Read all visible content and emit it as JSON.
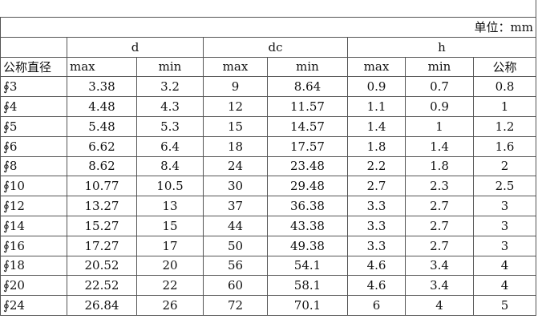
{
  "unit": "单位：mm",
  "groups": [
    "d",
    "dc",
    "h"
  ],
  "subheader": [
    "公称直径",
    "max",
    "min",
    "max",
    "min",
    "max",
    "min",
    "公称"
  ],
  "rows": [
    [
      "∮3",
      "3.38",
      "3.2",
      "9",
      "8.64",
      "0.9",
      "0.7",
      "0.8"
    ],
    [
      "∮4",
      "4.48",
      "4.3",
      "12",
      "11.57",
      "1.1",
      "0.9",
      "1"
    ],
    [
      "∮5",
      "5.48",
      "5.3",
      "15",
      "14.57",
      "1.4",
      "1",
      "1.2"
    ],
    [
      "∮6",
      "6.62",
      "6.4",
      "18",
      "17.57",
      "1.8",
      "1.4",
      "1.6"
    ],
    [
      "∮8",
      "8.62",
      "8.4",
      "24",
      "23.48",
      "2.2",
      "1.8",
      "2"
    ],
    [
      "∮10",
      "10.77",
      "10.5",
      "30",
      "29.48",
      "2.7",
      "2.3",
      "2.5"
    ],
    [
      "∮12",
      "13.27",
      "13",
      "37",
      "36.38",
      "3.3",
      "2.7",
      "3"
    ],
    [
      "∮14",
      "15.27",
      "15",
      "44",
      "43.38",
      "3.3",
      "2.7",
      "3"
    ],
    [
      "∮16",
      "17.27",
      "17",
      "50",
      "49.38",
      "3.3",
      "2.7",
      "3"
    ],
    [
      "∮18",
      "20.52",
      "20",
      "56",
      "54.1",
      "4.6",
      "3.4",
      "4"
    ],
    [
      "∮20",
      "22.52",
      "22",
      "60",
      "58.1",
      "4.6",
      "3.4",
      "4"
    ],
    [
      "∮24",
      "26.84",
      "26",
      "72",
      "70.1",
      "6",
      "4",
      "5"
    ]
  ]
}
